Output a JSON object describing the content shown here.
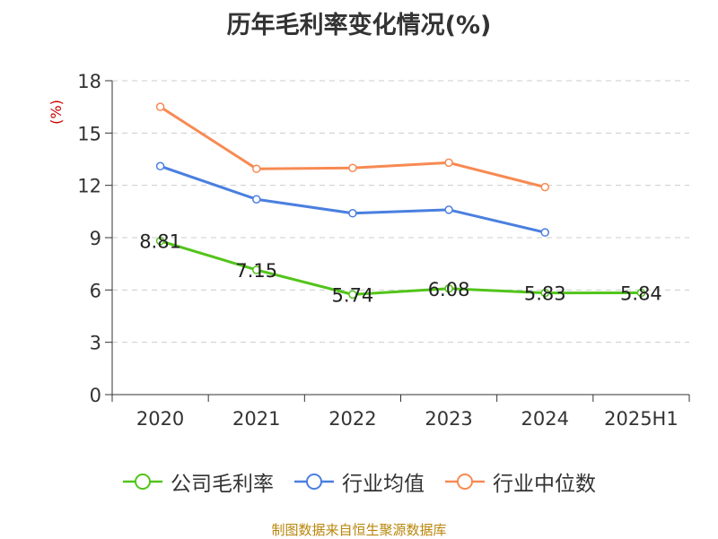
{
  "title": "历年毛利率变化情况(%)",
  "source": "制图数据来自恒生聚源数据库",
  "colors": {
    "gross_margin": "#52c41a",
    "industry_mean": "#4a7fe0",
    "industry_median": "#f78a53",
    "ylabel": "#cc0000",
    "grid": "#cccccc",
    "axis": "#333333"
  },
  "chart_data": {
    "type": "line",
    "title": "历年毛利率变化情况(%)",
    "ylabel": "(%)",
    "xlabel": "",
    "categories": [
      "2020",
      "2021",
      "2022",
      "2023",
      "2024",
      "2025H1"
    ],
    "ylim": [
      0,
      18
    ],
    "yticks": [
      0,
      3,
      6,
      9,
      12,
      15,
      18
    ],
    "grid": true,
    "legend_position": "bottom",
    "series": [
      {
        "name": "公司毛利率",
        "values": [
          8.81,
          7.15,
          5.74,
          6.08,
          5.83,
          5.84
        ],
        "labels": [
          "8.81",
          "7.15",
          "5.74",
          "6.08",
          "5.83",
          "5.84"
        ],
        "show_labels": true
      },
      {
        "name": "行业均值",
        "values": [
          13.1,
          11.2,
          10.4,
          10.6,
          9.3,
          null
        ],
        "show_labels": false
      },
      {
        "name": "行业中位数",
        "values": [
          16.5,
          12.95,
          13.0,
          13.3,
          11.9,
          null
        ],
        "show_labels": false
      }
    ]
  }
}
